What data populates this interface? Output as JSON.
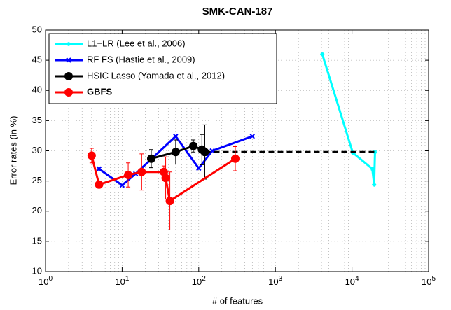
{
  "chart_data": {
    "type": "line",
    "title": "SMK-CAN-187",
    "x_label": "# of features",
    "y_label": "Error rates (in %)",
    "x_scale": "log",
    "xlim": [
      1,
      100000
    ],
    "xticks": [
      {
        "value": 1,
        "label": "10",
        "exponent": "0"
      },
      {
        "value": 10,
        "label": "10",
        "exponent": "1"
      },
      {
        "value": 100,
        "label": "10",
        "exponent": "2"
      },
      {
        "value": 1000,
        "label": "10",
        "exponent": "3"
      },
      {
        "value": 10000,
        "label": "10",
        "exponent": "4"
      },
      {
        "value": 100000,
        "label": "10",
        "exponent": "5"
      }
    ],
    "ylim": [
      10,
      50
    ],
    "yticks": [
      10,
      15,
      20,
      25,
      30,
      35,
      40,
      45,
      50
    ],
    "grid": true,
    "legend": "upper-left",
    "series": [
      {
        "name": "L1−LR (Lee et al., 2006)",
        "color": "#00ffff",
        "marker": "star",
        "x": [
          4096,
          10240,
          18432,
          19456,
          19968
        ],
        "values": [
          46,
          29.7,
          27,
          24.4,
          29.8
        ]
      },
      {
        "name": "RF FS (Hastie et al., 2009)",
        "color": "#0000ff",
        "marker": "x",
        "x": [
          5,
          10,
          15,
          50,
          100,
          150,
          500
        ],
        "values": [
          27,
          24.3,
          26.2,
          32.4,
          27.1,
          30,
          32.4
        ]
      },
      {
        "name": "HSIC Lasso (Yamada et al., 2012)",
        "color": "#000000",
        "marker": "circle",
        "dashed_from_index": 4,
        "x": [
          24,
          50,
          85,
          110,
          120,
          20000
        ],
        "values": [
          28.7,
          29.8,
          30.8,
          30.2,
          29.8,
          29.8
        ],
        "errors": [
          1.5,
          2,
          1,
          2.5,
          4.5,
          null
        ]
      },
      {
        "name": "GBFS",
        "color": "#ff0000",
        "marker": "circle",
        "bold": true,
        "x": [
          4,
          5,
          12,
          18,
          35,
          37,
          42,
          300
        ],
        "values": [
          29.2,
          24.4,
          26,
          26.5,
          26.5,
          25.5,
          21.7,
          28.7
        ],
        "errors": [
          1.2,
          null,
          2,
          3,
          1,
          3.5,
          4.8,
          2
        ]
      }
    ]
  }
}
